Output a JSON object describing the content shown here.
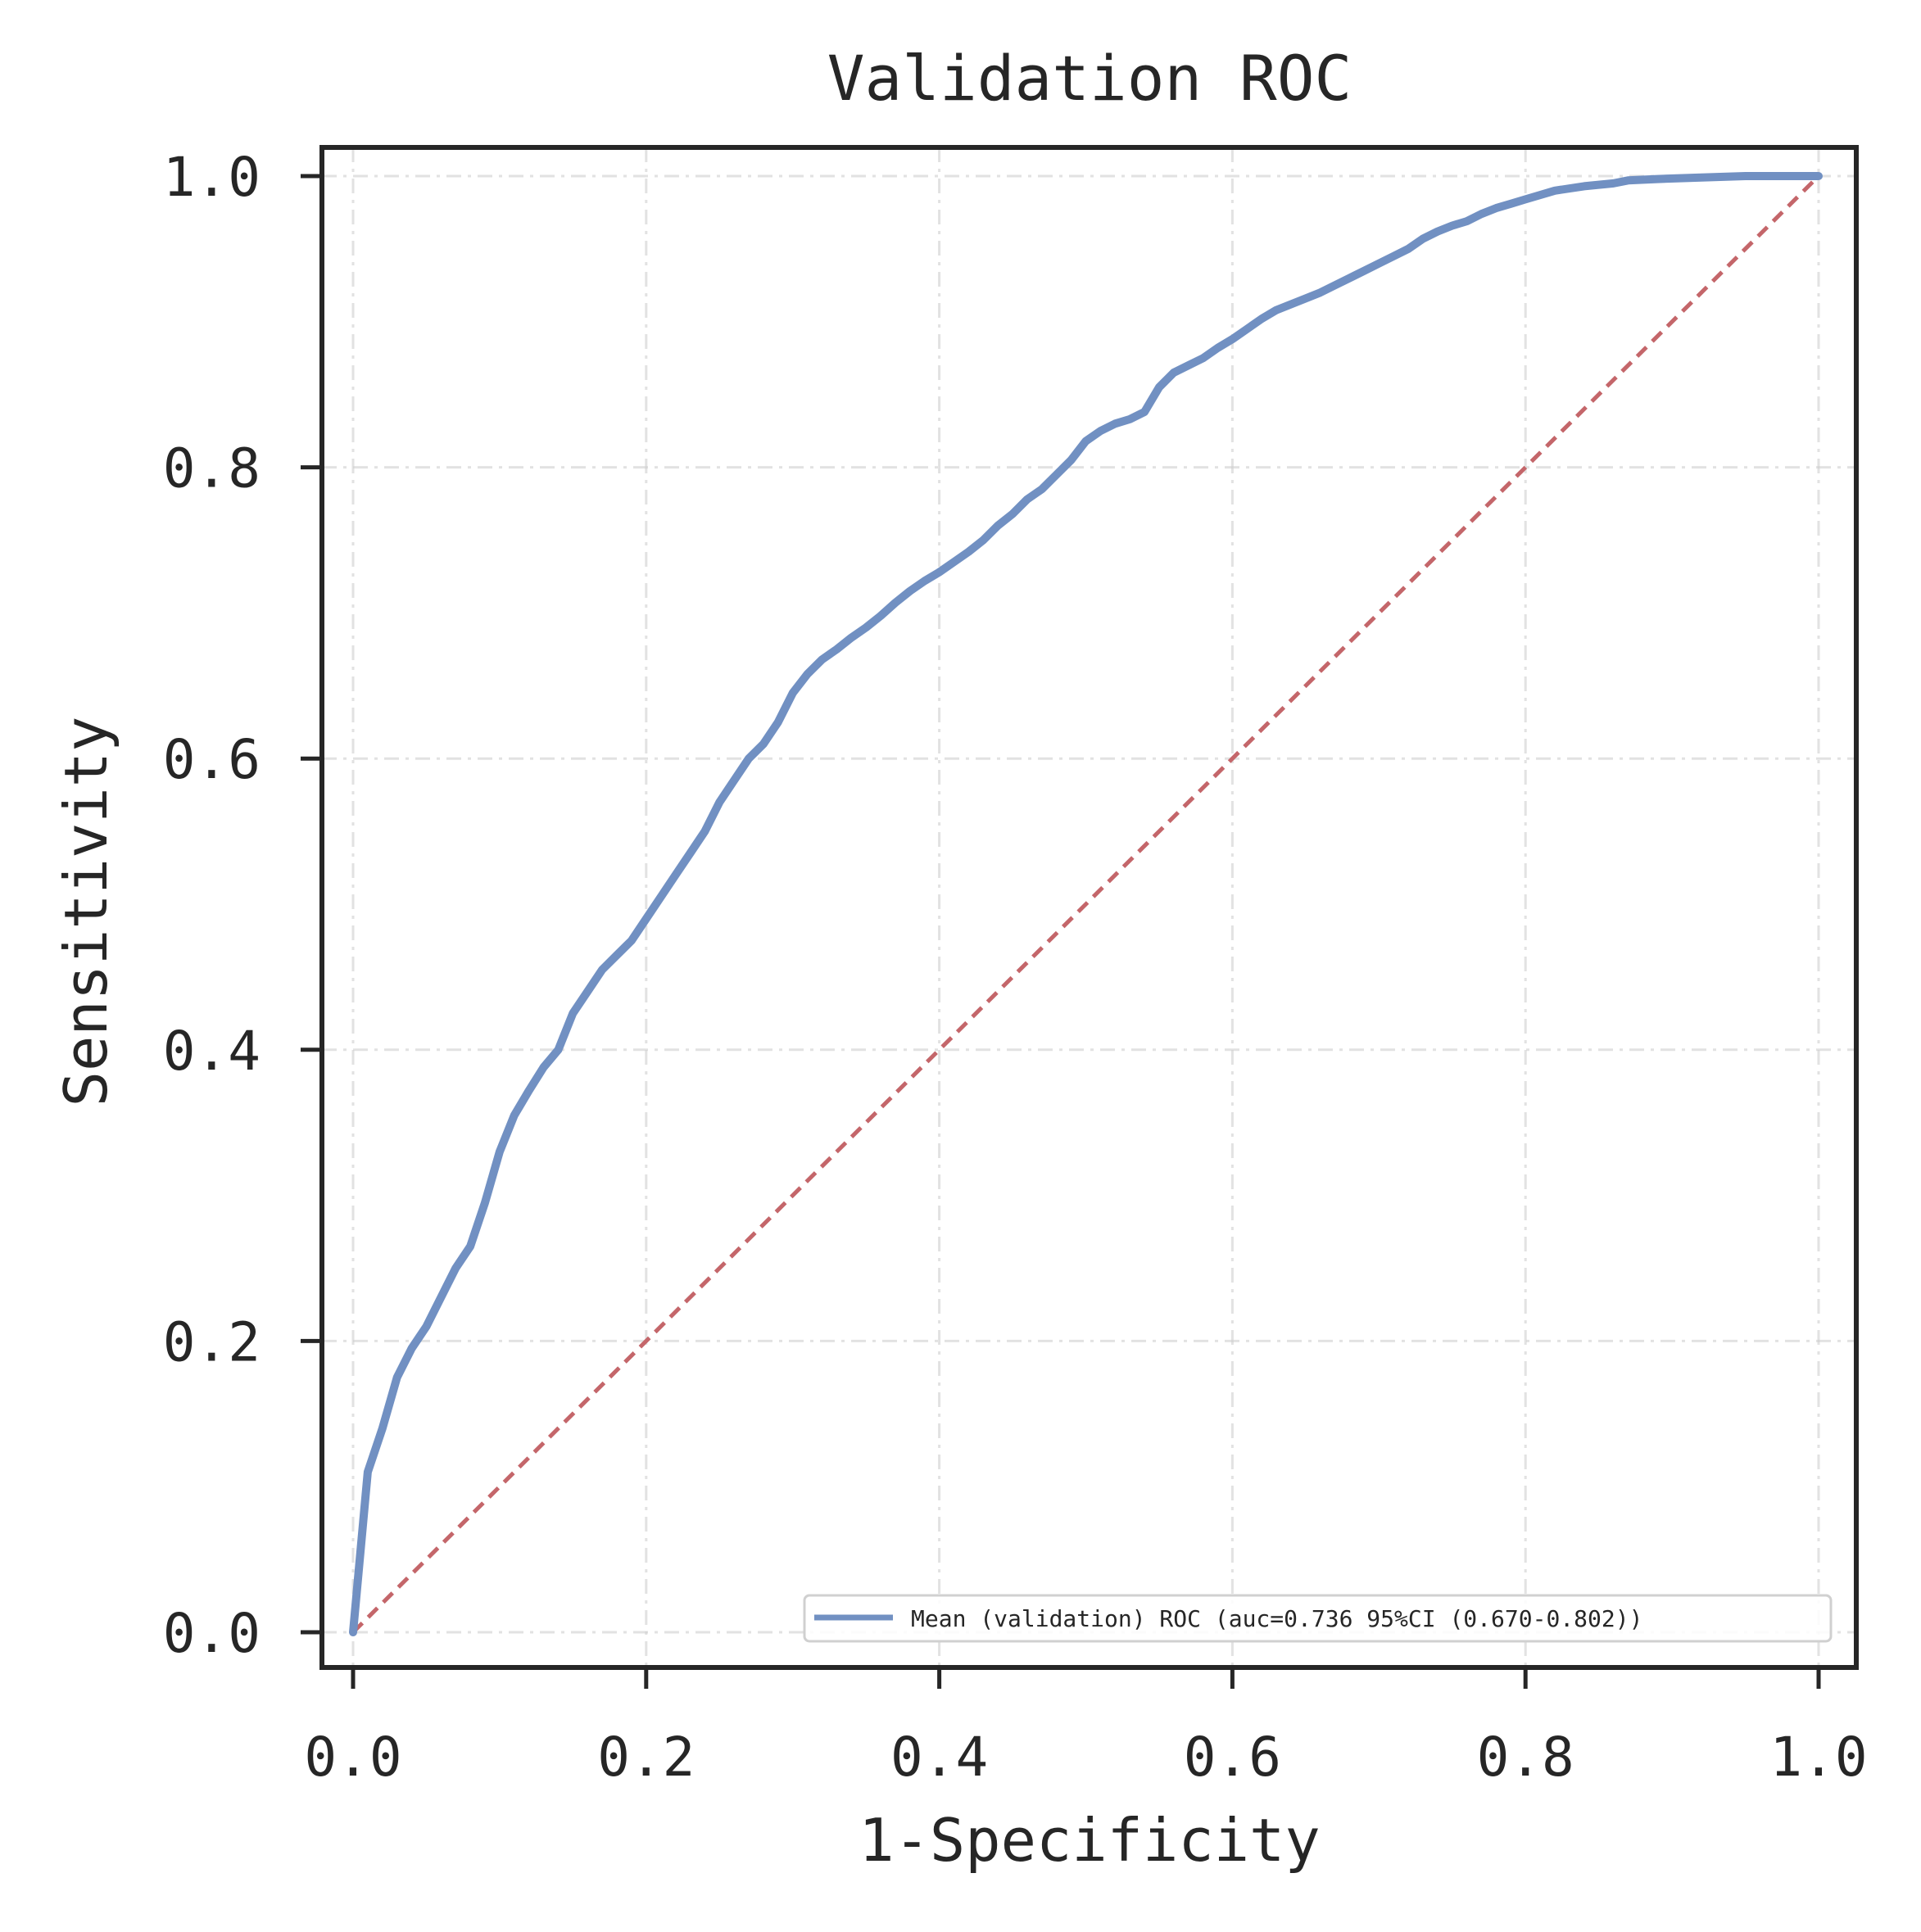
{
  "chart_data": {
    "type": "line",
    "title": "Validation ROC",
    "xlabel": "1-Specificity",
    "ylabel": "Sensitivity",
    "xlim": [
      0.0,
      1.0
    ],
    "ylim": [
      0.0,
      1.0
    ],
    "x_ticks": [
      "0.0",
      "0.2",
      "0.4",
      "0.6",
      "0.8",
      "1.0"
    ],
    "y_ticks": [
      "0.0",
      "0.2",
      "0.4",
      "0.6",
      "0.8",
      "1.0"
    ],
    "grid": true,
    "legend_position": "lower right",
    "series": [
      {
        "name": "Mean (validation) ROC (auc=0.736 95%CI (0.670-0.802))",
        "color": "#7190c2",
        "points": [
          [
            0.0,
            0.0
          ],
          [
            0.01,
            0.11
          ],
          [
            0.02,
            0.14
          ],
          [
            0.03,
            0.175
          ],
          [
            0.04,
            0.195
          ],
          [
            0.05,
            0.21
          ],
          [
            0.06,
            0.23
          ],
          [
            0.07,
            0.25
          ],
          [
            0.08,
            0.265
          ],
          [
            0.09,
            0.295
          ],
          [
            0.1,
            0.33
          ],
          [
            0.11,
            0.355
          ],
          [
            0.12,
            0.372
          ],
          [
            0.13,
            0.388
          ],
          [
            0.14,
            0.4
          ],
          [
            0.15,
            0.425
          ],
          [
            0.16,
            0.44
          ],
          [
            0.17,
            0.455
          ],
          [
            0.18,
            0.465
          ],
          [
            0.19,
            0.475
          ],
          [
            0.2,
            0.49
          ],
          [
            0.21,
            0.505
          ],
          [
            0.22,
            0.52
          ],
          [
            0.23,
            0.535
          ],
          [
            0.24,
            0.55
          ],
          [
            0.25,
            0.57
          ],
          [
            0.26,
            0.585
          ],
          [
            0.27,
            0.6
          ],
          [
            0.28,
            0.61
          ],
          [
            0.29,
            0.625
          ],
          [
            0.3,
            0.645
          ],
          [
            0.31,
            0.658
          ],
          [
            0.32,
            0.668
          ],
          [
            0.33,
            0.675
          ],
          [
            0.34,
            0.683
          ],
          [
            0.35,
            0.69
          ],
          [
            0.36,
            0.698
          ],
          [
            0.37,
            0.707
          ],
          [
            0.38,
            0.715
          ],
          [
            0.39,
            0.722
          ],
          [
            0.4,
            0.728
          ],
          [
            0.41,
            0.735
          ],
          [
            0.42,
            0.742
          ],
          [
            0.43,
            0.75
          ],
          [
            0.44,
            0.76
          ],
          [
            0.45,
            0.768
          ],
          [
            0.46,
            0.778
          ],
          [
            0.47,
            0.785
          ],
          [
            0.48,
            0.795
          ],
          [
            0.49,
            0.805
          ],
          [
            0.5,
            0.818
          ],
          [
            0.51,
            0.825
          ],
          [
            0.52,
            0.83
          ],
          [
            0.53,
            0.833
          ],
          [
            0.54,
            0.838
          ],
          [
            0.55,
            0.855
          ],
          [
            0.56,
            0.865
          ],
          [
            0.57,
            0.87
          ],
          [
            0.58,
            0.875
          ],
          [
            0.59,
            0.882
          ],
          [
            0.6,
            0.888
          ],
          [
            0.61,
            0.895
          ],
          [
            0.62,
            0.902
          ],
          [
            0.63,
            0.908
          ],
          [
            0.64,
            0.912
          ],
          [
            0.65,
            0.916
          ],
          [
            0.66,
            0.92
          ],
          [
            0.67,
            0.925
          ],
          [
            0.68,
            0.93
          ],
          [
            0.69,
            0.935
          ],
          [
            0.7,
            0.94
          ],
          [
            0.71,
            0.945
          ],
          [
            0.72,
            0.95
          ],
          [
            0.73,
            0.957
          ],
          [
            0.74,
            0.962
          ],
          [
            0.75,
            0.966
          ],
          [
            0.76,
            0.969
          ],
          [
            0.77,
            0.974
          ],
          [
            0.78,
            0.978
          ],
          [
            0.79,
            0.981
          ],
          [
            0.8,
            0.984
          ],
          [
            0.82,
            0.99
          ],
          [
            0.84,
            0.993
          ],
          [
            0.86,
            0.995
          ],
          [
            0.87,
            0.997
          ],
          [
            0.89,
            0.998
          ],
          [
            0.92,
            0.999
          ],
          [
            0.95,
            1.0
          ],
          [
            1.0,
            1.0
          ]
        ]
      },
      {
        "name": "",
        "style": "dashed",
        "color": "#c4666a",
        "points": [
          [
            0.0,
            0.0
          ],
          [
            1.0,
            1.0
          ]
        ]
      }
    ]
  }
}
